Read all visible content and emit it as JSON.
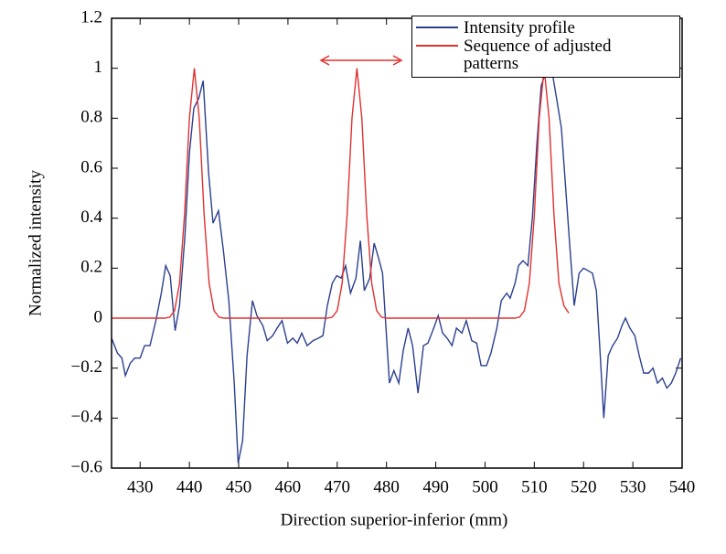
{
  "chart_data": {
    "type": "line",
    "xlabel": "Direction superior-inferior (mm)",
    "ylabel": "Normalized intensity",
    "xlim": [
      424.2,
      540
    ],
    "ylim": [
      -0.6,
      1.2
    ],
    "xticks": [
      430,
      440,
      450,
      460,
      470,
      480,
      490,
      500,
      510,
      520,
      530,
      540
    ],
    "yticks": [
      {
        "value": -0.6,
        "label": "−0.6"
      },
      {
        "value": -0.4,
        "label": "−0.4"
      },
      {
        "value": -0.2,
        "label": "−0.2"
      },
      0,
      0.2,
      0.4,
      0.6,
      0.8,
      1,
      1.2
    ],
    "series": [
      {
        "name": "Intensity profile",
        "color": "#2b3f8f",
        "x": [
          424.2,
          425.4,
          426.3,
          427.0,
          428.0,
          428.9,
          430.0,
          430.9,
          432.0,
          433.2,
          434.3,
          435.2,
          436.1,
          437.1,
          438.0,
          439.1,
          440.0,
          440.9,
          441.9,
          442.8,
          443.9,
          444.8,
          445.9,
          446.9,
          448.0,
          449.1,
          449.9,
          450.8,
          451.7,
          452.8,
          453.7,
          454.9,
          455.8,
          456.9,
          457.8,
          458.8,
          459.9,
          461.0,
          461.9,
          462.8,
          463.9,
          465.1,
          466.2,
          467.1,
          468.0,
          469.0,
          469.9,
          470.8,
          471.7,
          472.7,
          473.8,
          474.7,
          475.5,
          476.6,
          477.5,
          478.4,
          479.2,
          479.9,
          480.6,
          481.5,
          482.5,
          483.4,
          484.4,
          485.3,
          486.4,
          487.5,
          488.4,
          489.4,
          490.5,
          491.4,
          492.3,
          493.3,
          494.2,
          495.3,
          496.2,
          497.3,
          498.3,
          499.2,
          500.3,
          501.2,
          502.4,
          503.3,
          504.4,
          505.1,
          506.1,
          506.8,
          507.7,
          508.7,
          509.6,
          510.5,
          511.4,
          512.6,
          513.5,
          514.6,
          515.5,
          516.3,
          517.2,
          518.1,
          519.1,
          520.0,
          520.9,
          521.8,
          522.6,
          523.3,
          524.1,
          525.0,
          525.9,
          526.9,
          527.8,
          528.5,
          529.4,
          530.4,
          531.3,
          532.2,
          533.2,
          534.1,
          535.0,
          536.0,
          536.9,
          537.8,
          538.7,
          539.7
        ],
        "values": [
          -0.08,
          -0.14,
          -0.16,
          -0.23,
          -0.18,
          -0.16,
          -0.16,
          -0.11,
          -0.11,
          -0.01,
          0.1,
          0.21,
          0.17,
          -0.05,
          0.05,
          0.33,
          0.66,
          0.84,
          0.88,
          0.95,
          0.58,
          0.38,
          0.43,
          0.27,
          0.07,
          -0.26,
          -0.58,
          -0.49,
          -0.15,
          0.07,
          0.01,
          -0.03,
          -0.09,
          -0.07,
          -0.04,
          -0.01,
          -0.1,
          -0.08,
          -0.1,
          -0.06,
          -0.11,
          -0.09,
          -0.08,
          -0.07,
          0.05,
          0.14,
          0.17,
          0.16,
          0.21,
          0.1,
          0.16,
          0.31,
          0.11,
          0.16,
          0.3,
          0.24,
          0.18,
          -0.04,
          -0.26,
          -0.21,
          -0.26,
          -0.13,
          -0.04,
          -0.11,
          -0.3,
          -0.11,
          -0.1,
          -0.05,
          0.01,
          -0.06,
          -0.08,
          -0.11,
          -0.04,
          -0.06,
          -0.01,
          -0.09,
          -0.1,
          -0.19,
          -0.19,
          -0.14,
          -0.04,
          0.07,
          0.1,
          0.08,
          0.14,
          0.21,
          0.23,
          0.21,
          0.4,
          0.69,
          0.93,
          1.0,
          1.0,
          0.87,
          0.76,
          0.54,
          0.29,
          0.05,
          0.18,
          0.2,
          0.19,
          0.18,
          0.11,
          -0.12,
          -0.4,
          -0.15,
          -0.11,
          -0.08,
          -0.03,
          0.0,
          -0.04,
          -0.07,
          -0.15,
          -0.22,
          -0.22,
          -0.2,
          -0.26,
          -0.24,
          -0.28,
          -0.26,
          -0.22,
          -0.16
        ]
      },
      {
        "name": "Sequence of adjusted patterns",
        "color": "#e0312f",
        "x": [
          424.2,
          435,
          436,
          437,
          438,
          439,
          440,
          441,
          442,
          443,
          444,
          445,
          446,
          447,
          468,
          469,
          470,
          471,
          472,
          473,
          474,
          475,
          476,
          477,
          478,
          479,
          480,
          506,
          507,
          508,
          509,
          510,
          511,
          512,
          513,
          514,
          515,
          516,
          517
        ],
        "values": [
          0,
          0,
          0.004,
          0.03,
          0.14,
          0.41,
          0.8,
          1,
          0.8,
          0.41,
          0.14,
          0.03,
          0.004,
          0,
          0,
          0.004,
          0.03,
          0.14,
          0.41,
          0.8,
          1,
          0.8,
          0.41,
          0.14,
          0.03,
          0.004,
          0,
          0,
          0.004,
          0.03,
          0.14,
          0.41,
          0.8,
          1,
          0.8,
          0.41,
          0.14,
          0.05,
          0.02
        ]
      }
    ]
  }
}
